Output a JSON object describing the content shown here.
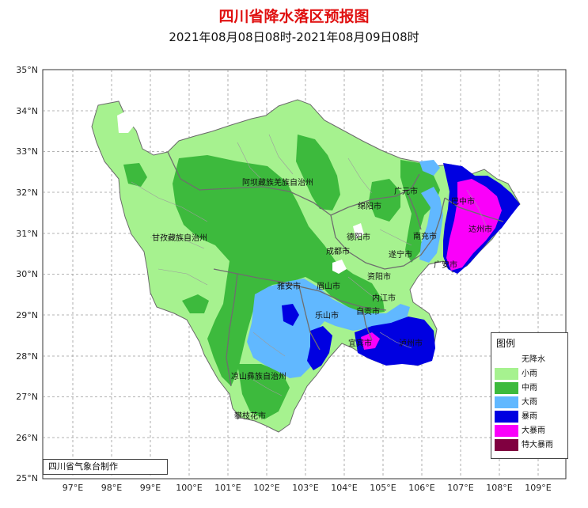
{
  "title": "四川省降水落区预报图",
  "subtitle": "2021年08月08日08时-2021年08月09日08时",
  "lat_labels": [
    "35°N",
    "34°N",
    "33°N",
    "32°N",
    "31°N",
    "30°N",
    "29°N",
    "28°N",
    "27°N",
    "26°N",
    "25°N"
  ],
  "lon_labels": [
    "97°E",
    "98°E",
    "99°E",
    "100°E",
    "101°E",
    "102°E",
    "103°E",
    "104°E",
    "105°E",
    "106°E",
    "107°E",
    "108°E",
    "109°E"
  ],
  "places": [
    "阿坝藏族羌族自治州",
    "广元市",
    "绵阳市",
    "巴中市",
    "达州市",
    "甘孜藏族自治州",
    "德阳市",
    "南充市",
    "成都市",
    "遂宁市",
    "广安市",
    "资阳市",
    "雅安市",
    "眉山市",
    "内江市",
    "自贡市",
    "乐山市",
    "宜宾市",
    "泸州市",
    "凉山彝族自治州",
    "攀枝花市"
  ],
  "legend": {
    "title": "图例",
    "items": [
      {
        "label": "无降水",
        "color": "#ffffff"
      },
      {
        "label": "小雨",
        "color": "#a6f28f"
      },
      {
        "label": "中雨",
        "color": "#3dba3d"
      },
      {
        "label": "大雨",
        "color": "#61b8ff"
      },
      {
        "label": "暴雨",
        "color": "#0000e1"
      },
      {
        "label": "大暴雨",
        "color": "#fa00fa"
      },
      {
        "label": "特大暴雨",
        "color": "#800040"
      }
    ]
  },
  "credit": "四川省气象台制作"
}
